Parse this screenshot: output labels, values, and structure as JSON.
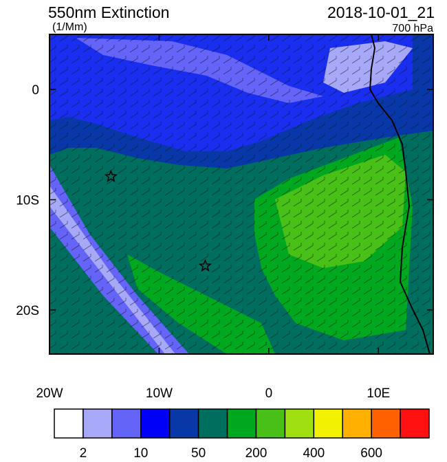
{
  "header": {
    "title": "550nm Extinction",
    "units": "(1/Mm)",
    "time": "2018-10-01_21",
    "level": "700 hPa"
  },
  "map": {
    "lon_range": [
      -20,
      15
    ],
    "lat_range": [
      -24,
      5
    ],
    "lon_ticks": [
      {
        "value": -20,
        "label": "20W"
      },
      {
        "value": -10,
        "label": "10W"
      },
      0,
      {
        "value": 10,
        "label": "10E"
      }
    ],
    "lat_ticks": [
      0,
      {
        "value": -10,
        "label": "10S"
      },
      {
        "value": -20,
        "label": "20S"
      }
    ],
    "markers": [
      {
        "lon": -14.4,
        "lat": -7.9
      },
      {
        "lon": -5.8,
        "lat": -16
      }
    ]
  },
  "colorbar": {
    "colors": [
      "#ffffff",
      "#a8a8f8",
      "#6464f8",
      "#0000f8",
      "#0838a8",
      "#006e5e",
      "#00a820",
      "#48c018",
      "#a0e010",
      "#f0f000",
      "#ffb000",
      "#ff6000",
      "#ff1010"
    ],
    "labels": [
      "2",
      null,
      "10",
      null,
      "50",
      null,
      "200",
      null,
      "400",
      null,
      "600",
      null
    ]
  }
}
